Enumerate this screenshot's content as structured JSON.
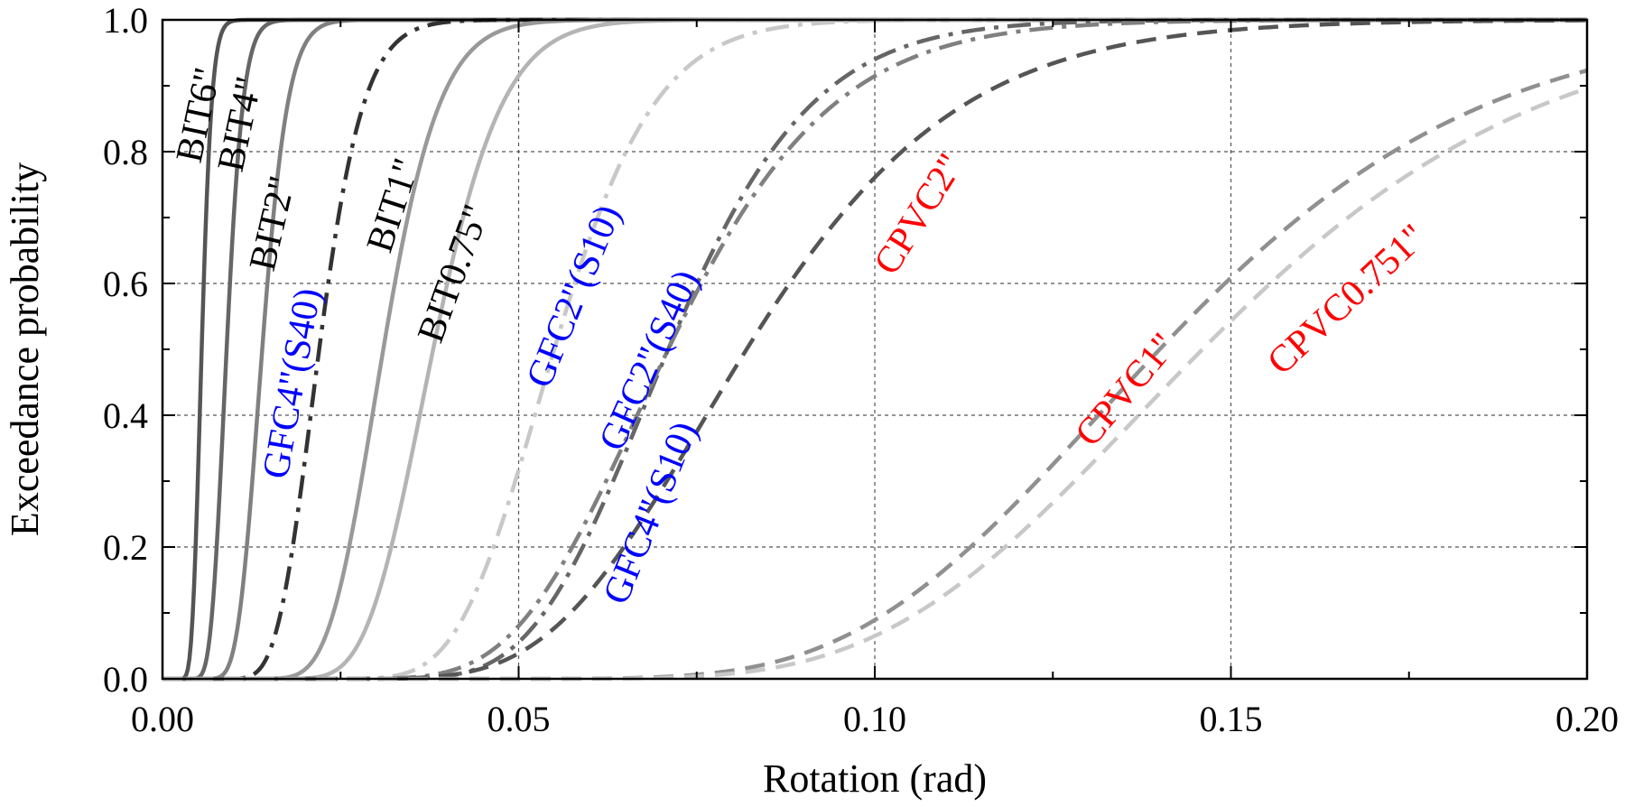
{
  "chart_data": {
    "type": "line",
    "xlabel": "Rotation (rad)",
    "ylabel": "Exceedance probability",
    "xlim": [
      0,
      0.2
    ],
    "ylim": [
      0,
      1
    ],
    "x_ticks": [
      "0.00",
      "0.05",
      "0.10",
      "0.15",
      "0.20"
    ],
    "y_ticks": [
      "0.0",
      "0.2",
      "0.4",
      "0.6",
      "0.8",
      "1.0"
    ],
    "grid": true,
    "legend": "none",
    "series": [
      {
        "name": "BIT6\"",
        "median": 0.0055,
        "beta": 0.2,
        "color": "#555555",
        "dash": "solid",
        "label_color": "#000000"
      },
      {
        "name": "BIT4\"",
        "median": 0.009,
        "beta": 0.2,
        "color": "#666666",
        "dash": "solid",
        "label_color": "#000000"
      },
      {
        "name": "BIT2\"",
        "median": 0.014,
        "beta": 0.2,
        "color": "#808080",
        "dash": "solid",
        "label_color": "#000000"
      },
      {
        "name": "GFC4\"(S40)",
        "median": 0.022,
        "beta": 0.22,
        "color": "#333333",
        "dash": "dashdot",
        "label_color": "#0000ff"
      },
      {
        "name": "BIT1\"",
        "median": 0.031,
        "beta": 0.2,
        "color": "#999999",
        "dash": "solid",
        "label_color": "#000000"
      },
      {
        "name": "BIT0.75\"",
        "median": 0.038,
        "beta": 0.2,
        "color": "#b4b4b4",
        "dash": "solid",
        "label_color": "#000000"
      },
      {
        "name": "GFC2\"(S10)",
        "median": 0.055,
        "beta": 0.2,
        "color": "#c8c8c8",
        "dash": "dashdot",
        "label_color": "#0000ff"
      },
      {
        "name": "GFC2\"(S40)",
        "median": 0.071,
        "beta": 0.22,
        "color": "#666666",
        "dash": "dashdot",
        "label_color": "#0000ff"
      },
      {
        "name": "GFC4\"(S10)",
        "median": 0.071,
        "beta": 0.25,
        "color": "#808080",
        "dash": "dashdot",
        "label_color": "#0000ff"
      },
      {
        "name": "CPVC2\"",
        "median": 0.082,
        "beta": 0.28,
        "color": "#555555",
        "dash": "dashed",
        "label_color": "#ff0000"
      },
      {
        "name": "CPVC1\"",
        "median": 0.14,
        "beta": 0.25,
        "color": "#909090",
        "dash": "dashed",
        "label_color": "#ff0000"
      },
      {
        "name": "CPVC0.751\"",
        "median": 0.146,
        "beta": 0.25,
        "color": "#c8c8c8",
        "dash": "dashed",
        "label_color": "#ff0000"
      }
    ]
  }
}
